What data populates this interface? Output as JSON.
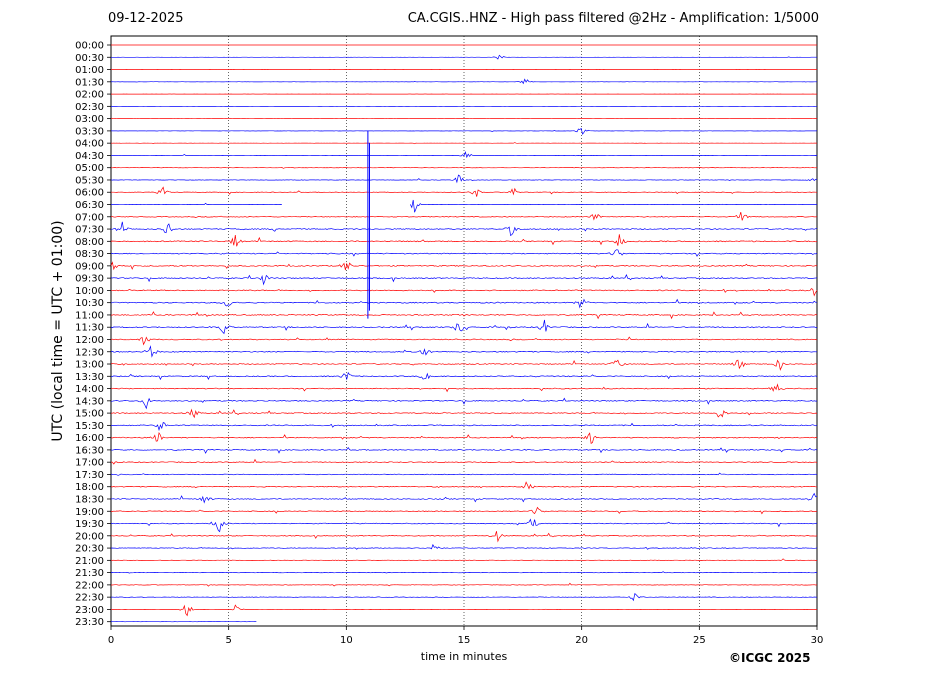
{
  "header": {
    "date": "09-12-2025",
    "title": "CA.CGIS..HNZ - High pass filtered @2Hz - Amplification: 1/5000"
  },
  "credit": "©ICGC 2025",
  "chart_data": {
    "type": "line",
    "title": "CA.CGIS..HNZ - High pass filtered @2Hz - Amplification: 1/5000",
    "xlabel": "time in minutes",
    "ylabel": "UTC (local time = UTC + 01:00)",
    "xlim": [
      0,
      30
    ],
    "x_ticks": [
      0,
      5,
      10,
      15,
      20,
      25,
      30
    ],
    "x_gridlines": "dotted vertical at each 5 min",
    "row_labels": [
      "00:00",
      "00:30",
      "01:00",
      "01:30",
      "02:00",
      "02:30",
      "03:00",
      "03:30",
      "04:00",
      "04:30",
      "05:00",
      "05:30",
      "06:00",
      "06:30",
      "07:00",
      "07:30",
      "08:00",
      "08:30",
      "09:00",
      "09:30",
      "10:00",
      "10:30",
      "11:00",
      "11:30",
      "12:00",
      "12:30",
      "13:00",
      "13:30",
      "14:00",
      "14:30",
      "15:00",
      "15:30",
      "16:00",
      "16:30",
      "17:00",
      "17:30",
      "18:00",
      "18:30",
      "19:00",
      "19:30",
      "20:00",
      "20:30",
      "21:00",
      "21:30",
      "22:00",
      "22:30",
      "23:00",
      "23:30"
    ],
    "row_colors": [
      "#ff0000",
      "#0000ff"
    ],
    "trace_extent_last_row_minutes": 6.2,
    "gap_06_30_minutes": [
      7.3,
      12.9
    ],
    "noise_level_by_row": [
      0.1,
      0.15,
      0.15,
      0.2,
      0.1,
      0.2,
      0.1,
      0.25,
      0.2,
      0.3,
      0.35,
      0.45,
      0.55,
      0.35,
      0.65,
      1.0,
      1.0,
      1.0,
      1.0,
      0.95,
      1.0,
      1.0,
      1.0,
      1.0,
      0.95,
      0.95,
      0.9,
      0.95,
      0.9,
      0.9,
      0.9,
      0.95,
      0.9,
      0.9,
      0.8,
      0.75,
      0.75,
      0.85,
      0.8,
      0.85,
      0.7,
      0.65,
      0.5,
      0.35,
      0.45,
      0.45,
      0.35,
      0.15
    ],
    "events": [
      {
        "row": "00:30",
        "minute": 16.5,
        "amplitude": 0.3
      },
      {
        "row": "01:30",
        "minute": 17.6,
        "amplitude": 0.4
      },
      {
        "row": "03:30",
        "minute": 20.0,
        "amplitude": 0.6
      },
      {
        "row": "04:30",
        "minute": 15.1,
        "amplitude": 0.4
      },
      {
        "row": "05:30",
        "minute": 14.8,
        "amplitude": 0.6
      },
      {
        "row": "05:30",
        "minute": 29.9,
        "amplitude": 0.5
      },
      {
        "row": "06:00",
        "minute": 2.2,
        "amplitude": 0.5
      },
      {
        "row": "06:00",
        "minute": 15.5,
        "amplitude": 0.5
      },
      {
        "row": "06:00",
        "minute": 17.1,
        "amplitude": 0.5
      },
      {
        "row": "06:30",
        "minute": 12.8,
        "amplitude": 1.6
      },
      {
        "row": "07:00",
        "minute": 20.6,
        "amplitude": 0.6
      },
      {
        "row": "07:00",
        "minute": 26.8,
        "amplitude": 0.6
      },
      {
        "row": "07:30",
        "minute": 0.5,
        "amplitude": 0.7
      },
      {
        "row": "07:30",
        "minute": 2.4,
        "amplitude": 0.9
      },
      {
        "row": "07:30",
        "minute": 17.0,
        "amplitude": 0.6
      },
      {
        "row": "08:00",
        "minute": 5.3,
        "amplitude": 0.7
      },
      {
        "row": "08:00",
        "minute": 21.6,
        "amplitude": 0.7
      },
      {
        "row": "08:30",
        "minute": 21.5,
        "amplitude": 0.7
      },
      {
        "row": "09:00",
        "minute": 0.1,
        "amplitude": 0.6
      },
      {
        "row": "09:00",
        "minute": 10.0,
        "amplitude": 0.7
      },
      {
        "row": "09:30",
        "minute": 6.5,
        "amplitude": 0.6
      },
      {
        "row": "10:00",
        "minute": 29.9,
        "amplitude": 0.6
      },
      {
        "row": "10:30",
        "minute": 5.0,
        "amplitude": 0.7
      },
      {
        "row": "10:30",
        "minute": 20.0,
        "amplitude": 0.7
      },
      {
        "row": "11:30",
        "minute": 4.8,
        "amplitude": 0.7
      },
      {
        "row": "11:30",
        "minute": 14.8,
        "amplitude": 0.8
      },
      {
        "row": "11:30",
        "minute": 18.4,
        "amplitude": 0.7
      },
      {
        "row": "12:00",
        "minute": 1.4,
        "amplitude": 0.6
      },
      {
        "row": "12:30",
        "minute": 1.7,
        "amplitude": 0.8
      },
      {
        "row": "12:30",
        "minute": 13.3,
        "amplitude": 0.6
      },
      {
        "row": "13:00",
        "minute": 21.5,
        "amplitude": 0.7
      },
      {
        "row": "13:00",
        "minute": 26.7,
        "amplitude": 0.8
      },
      {
        "row": "13:00",
        "minute": 28.4,
        "amplitude": 0.7
      },
      {
        "row": "13:30",
        "minute": 10.0,
        "amplitude": 0.6
      },
      {
        "row": "13:30",
        "minute": 13.4,
        "amplitude": 0.7
      },
      {
        "row": "14:00",
        "minute": 28.3,
        "amplitude": 0.7
      },
      {
        "row": "14:30",
        "minute": 1.5,
        "amplitude": 0.6
      },
      {
        "row": "15:00",
        "minute": 3.5,
        "amplitude": 0.6
      },
      {
        "row": "15:00",
        "minute": 25.9,
        "amplitude": 0.7
      },
      {
        "row": "15:30",
        "minute": 2.1,
        "amplitude": 0.7
      },
      {
        "row": "16:00",
        "minute": 2.0,
        "amplitude": 0.6
      },
      {
        "row": "16:00",
        "minute": 20.4,
        "amplitude": 0.7
      },
      {
        "row": "18:00",
        "minute": 17.7,
        "amplitude": 0.6
      },
      {
        "row": "18:30",
        "minute": 4.0,
        "amplitude": 0.6
      },
      {
        "row": "18:30",
        "minute": 29.9,
        "amplitude": 0.6
      },
      {
        "row": "19:00",
        "minute": 18.1,
        "amplitude": 0.6
      },
      {
        "row": "19:30",
        "minute": 4.6,
        "amplitude": 0.8
      },
      {
        "row": "19:30",
        "minute": 17.9,
        "amplitude": 0.7
      },
      {
        "row": "20:00",
        "minute": 16.4,
        "amplitude": 0.6
      },
      {
        "row": "20:30",
        "minute": 13.7,
        "amplitude": 0.7
      },
      {
        "row": "22:30",
        "minute": 22.3,
        "amplitude": 0.6
      },
      {
        "row": "23:00",
        "minute": 3.2,
        "amplitude": 1.0
      },
      {
        "row": "23:00",
        "minute": 5.3,
        "amplitude": 0.5
      }
    ],
    "spikes": [
      {
        "row": "04:00",
        "minute": 10.95,
        "y_span_rows": [
          -1.0,
          14.3
        ],
        "color": "#0000ff"
      }
    ]
  }
}
